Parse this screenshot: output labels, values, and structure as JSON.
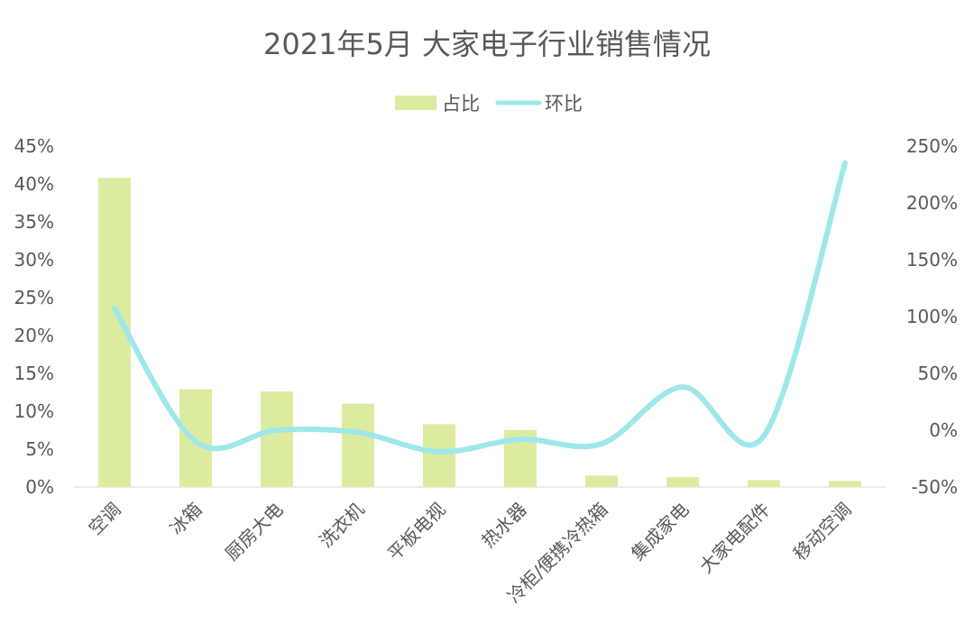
{
  "chart_data": {
    "type": "bar",
    "title": "2021年5月 大家电子行业销售情况",
    "categories": [
      "空调",
      "冰箱",
      "厨房大电",
      "洗衣机",
      "平板电视",
      "热水器",
      "冷柜/便携冷热箱",
      "集成家电",
      "大家电配件",
      "移动空调"
    ],
    "series": [
      {
        "name": "占比",
        "type": "bar",
        "axis": "left",
        "color": "#dbeca1",
        "values": [
          40.8,
          12.9,
          12.6,
          11.0,
          8.3,
          7.5,
          1.5,
          1.3,
          0.9,
          0.8
        ]
      },
      {
        "name": "环比",
        "type": "line",
        "axis": "right",
        "smooth": true,
        "color": "#9ee7eb",
        "values": [
          107,
          -10,
          0,
          -2,
          -19,
          -8,
          -12,
          38,
          -5,
          235
        ]
      }
    ],
    "y_left": {
      "min": 0,
      "max": 45,
      "step": 5,
      "ticks": [
        "0%",
        "5%",
        "10%",
        "15%",
        "20%",
        "25%",
        "30%",
        "35%",
        "40%",
        "45%"
      ]
    },
    "y_right": {
      "min": -50,
      "max": 250,
      "step": 50,
      "ticks": [
        "-50%",
        "0%",
        "50%",
        "100%",
        "150%",
        "200%",
        "250%"
      ]
    },
    "legend_position": "top-center",
    "grid": false
  }
}
